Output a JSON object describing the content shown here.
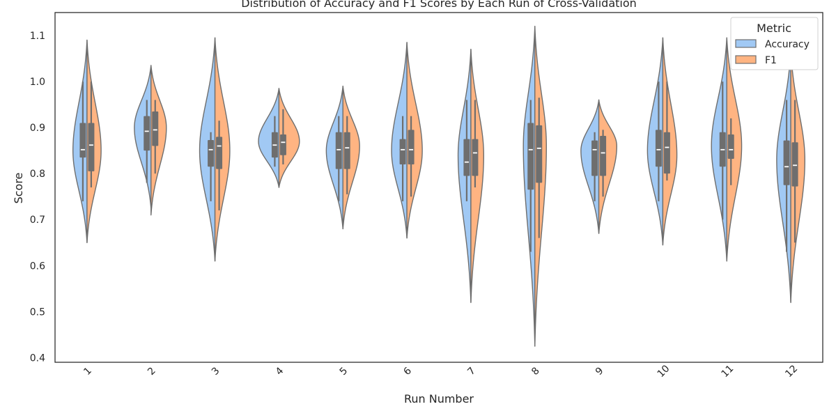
{
  "chart_data": {
    "type": "violin",
    "title": "Distribution of Accuracy and F1 Scores by Each Run of Cross-Validation",
    "xlabel": "Run Number",
    "ylabel": "Score",
    "ylim": [
      0.39,
      1.15
    ],
    "yticks": [
      0.4,
      0.5,
      0.6,
      0.7,
      0.8,
      0.9,
      1.0,
      1.1
    ],
    "ytick_labels": [
      "0.4",
      "0.5",
      "0.6",
      "0.7",
      "0.8",
      "0.9",
      "1.0",
      "1.1"
    ],
    "categories": [
      "1",
      "2",
      "3",
      "4",
      "5",
      "6",
      "7",
      "8",
      "9",
      "10",
      "11",
      "12"
    ],
    "split": true,
    "grid": false,
    "legend": {
      "title": "Metric",
      "position": "top-right"
    },
    "series": [
      {
        "name": "Accuracy",
        "color": "#a1c9f4",
        "runs": [
          {
            "min": 0.65,
            "max": 1.09,
            "q1": 0.835,
            "median": 0.852,
            "q3": 0.91,
            "wlo": 0.74,
            "whi": 1.0,
            "peak": 0.85,
            "width": 0.55
          },
          {
            "min": 0.725,
            "max": 1.035,
            "q1": 0.85,
            "median": 0.892,
            "q3": 0.925,
            "wlo": 0.78,
            "whi": 0.96,
            "peak": 0.9,
            "width": 0.65
          },
          {
            "min": 0.61,
            "max": 1.095,
            "q1": 0.815,
            "median": 0.852,
            "q3": 0.873,
            "wlo": 0.74,
            "whi": 0.89,
            "peak": 0.85,
            "width": 0.6
          },
          {
            "min": 0.77,
            "max": 0.985,
            "q1": 0.835,
            "median": 0.862,
            "q3": 0.89,
            "wlo": 0.815,
            "whi": 0.925,
            "peak": 0.87,
            "width": 0.8
          },
          {
            "min": 0.68,
            "max": 0.99,
            "q1": 0.81,
            "median": 0.852,
            "q3": 0.89,
            "wlo": 0.74,
            "whi": 0.925,
            "peak": 0.85,
            "width": 0.65
          },
          {
            "min": 0.66,
            "max": 1.085,
            "q1": 0.82,
            "median": 0.852,
            "q3": 0.875,
            "wlo": 0.74,
            "whi": 0.925,
            "peak": 0.85,
            "width": 0.6
          },
          {
            "min": 0.52,
            "max": 1.07,
            "q1": 0.795,
            "median": 0.825,
            "q3": 0.875,
            "wlo": 0.74,
            "whi": 0.96,
            "peak": 0.84,
            "width": 0.5
          },
          {
            "min": 0.425,
            "max": 1.12,
            "q1": 0.765,
            "median": 0.852,
            "q3": 0.91,
            "wlo": 0.63,
            "whi": 0.96,
            "peak": 0.86,
            "width": 0.45
          },
          {
            "min": 0.67,
            "max": 0.96,
            "q1": 0.795,
            "median": 0.852,
            "q3": 0.872,
            "wlo": 0.74,
            "whi": 0.89,
            "peak": 0.85,
            "width": 0.7
          },
          {
            "min": 0.645,
            "max": 1.095,
            "q1": 0.815,
            "median": 0.852,
            "q3": 0.895,
            "wlo": 0.74,
            "whi": 1.0,
            "peak": 0.85,
            "width": 0.6
          },
          {
            "min": 0.61,
            "max": 1.095,
            "q1": 0.815,
            "median": 0.852,
            "q3": 0.89,
            "wlo": 0.7,
            "whi": 1.0,
            "peak": 0.86,
            "width": 0.6
          },
          {
            "min": 0.52,
            "max": 1.07,
            "q1": 0.775,
            "median": 0.815,
            "q3": 0.872,
            "wlo": 0.63,
            "whi": 0.96,
            "peak": 0.83,
            "width": 0.55
          }
        ]
      },
      {
        "name": "F1",
        "color": "#ffb482",
        "runs": [
          {
            "min": 0.65,
            "max": 1.09,
            "q1": 0.805,
            "median": 0.862,
            "q3": 0.91,
            "wlo": 0.77,
            "whi": 1.0,
            "peak": 0.85,
            "width": 0.55
          },
          {
            "min": 0.71,
            "max": 1.035,
            "q1": 0.86,
            "median": 0.895,
            "q3": 0.935,
            "wlo": 0.8,
            "whi": 0.96,
            "peak": 0.9,
            "width": 0.6
          },
          {
            "min": 0.61,
            "max": 1.095,
            "q1": 0.81,
            "median": 0.86,
            "q3": 0.88,
            "wlo": 0.72,
            "whi": 0.915,
            "peak": 0.85,
            "width": 0.58
          },
          {
            "min": 0.77,
            "max": 0.985,
            "q1": 0.84,
            "median": 0.868,
            "q3": 0.885,
            "wlo": 0.82,
            "whi": 0.94,
            "peak": 0.87,
            "width": 0.8
          },
          {
            "min": 0.68,
            "max": 0.99,
            "q1": 0.81,
            "median": 0.856,
            "q3": 0.89,
            "wlo": 0.755,
            "whi": 0.925,
            "peak": 0.86,
            "width": 0.65
          },
          {
            "min": 0.66,
            "max": 1.085,
            "q1": 0.82,
            "median": 0.852,
            "q3": 0.895,
            "wlo": 0.75,
            "whi": 0.925,
            "peak": 0.85,
            "width": 0.6
          },
          {
            "min": 0.52,
            "max": 1.07,
            "q1": 0.795,
            "median": 0.845,
            "q3": 0.875,
            "wlo": 0.77,
            "whi": 0.96,
            "peak": 0.84,
            "width": 0.5
          },
          {
            "min": 0.425,
            "max": 1.12,
            "q1": 0.78,
            "median": 0.855,
            "q3": 0.905,
            "wlo": 0.66,
            "whi": 0.965,
            "peak": 0.86,
            "width": 0.45
          },
          {
            "min": 0.67,
            "max": 0.96,
            "q1": 0.795,
            "median": 0.845,
            "q3": 0.882,
            "wlo": 0.75,
            "whi": 0.895,
            "peak": 0.86,
            "width": 0.7
          },
          {
            "min": 0.645,
            "max": 1.095,
            "q1": 0.8,
            "median": 0.857,
            "q3": 0.89,
            "wlo": 0.785,
            "whi": 1.0,
            "peak": 0.84,
            "width": 0.55
          },
          {
            "min": 0.61,
            "max": 1.095,
            "q1": 0.832,
            "median": 0.852,
            "q3": 0.885,
            "wlo": 0.775,
            "whi": 0.92,
            "peak": 0.86,
            "width": 0.58
          },
          {
            "min": 0.52,
            "max": 1.07,
            "q1": 0.772,
            "median": 0.818,
            "q3": 0.868,
            "wlo": 0.65,
            "whi": 0.96,
            "peak": 0.83,
            "width": 0.55
          }
        ]
      }
    ]
  }
}
